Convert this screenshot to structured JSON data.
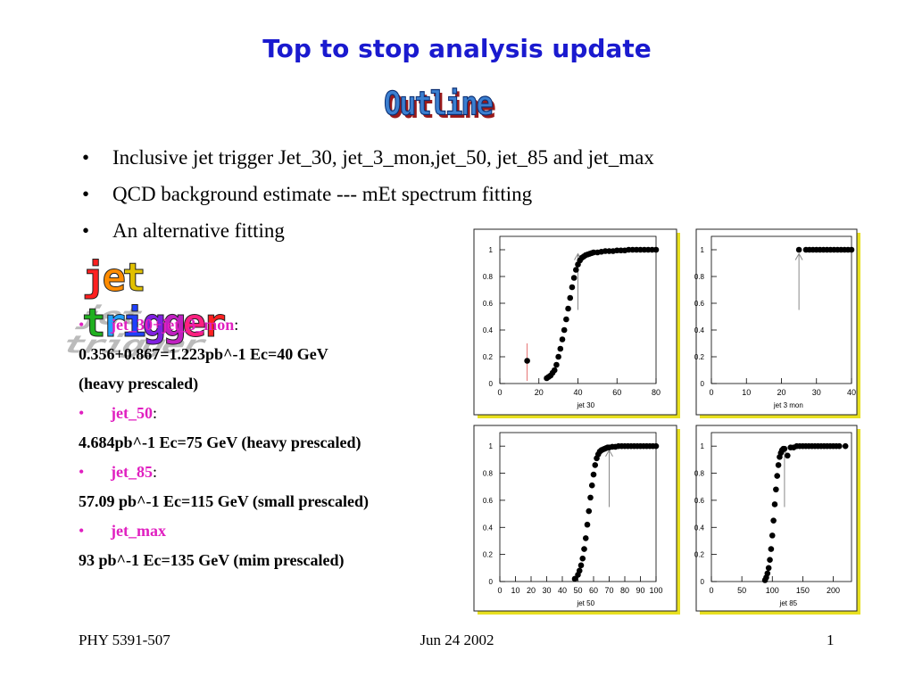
{
  "slide": {
    "title": "Top to stop analysis update",
    "outline_art": "Outline",
    "bullets": [
      "Inclusive jet trigger Jet_30, jet_3_mon,jet_50, jet_85 and jet_max",
      "QCD background estimate --- mEt spectrum fitting",
      "An alternative fitting"
    ],
    "bullet_symbol": "•",
    "jet_trigger_art": [
      "j",
      "e",
      "t",
      " ",
      "t",
      "r",
      "i",
      "g",
      "g",
      "e",
      "r"
    ],
    "jet_trigger_colors": [
      "#ff2020",
      "#ff8c00",
      "#e0c000",
      "#ffffff",
      "#20b020",
      "#20a0ff",
      "#2040ff",
      "#8020e0",
      "#c020c0",
      "#ff2080",
      "#ff2020"
    ],
    "triggers": [
      {
        "name": "jet_30+jet_3_mon",
        "suffix": ":",
        "detail": "0.356+0.867=1.223pb^-1 Ec=40 GeV",
        "extra": "(heavy prescaled)"
      },
      {
        "name": "jet_50",
        "suffix": ":",
        "detail": "4.684pb^-1  Ec=75 GeV (heavy prescaled)"
      },
      {
        "name": "jet_85",
        "suffix": ":",
        "detail": "57.09 pb^-1 Ec=115 GeV (small prescaled)"
      },
      {
        "name": "jet_max",
        "suffix": "",
        "detail": "93 pb^-1 Ec=135 GeV (mim prescaled)"
      }
    ],
    "footer": {
      "left": "PHY 5391-507",
      "center": "Jun 24 2002",
      "right": "1"
    }
  },
  "colors": {
    "title": "#1a1acf",
    "trigger_name": "#e020c0",
    "plot_frame": "#e8e020"
  },
  "chart_data": [
    {
      "type": "scatter",
      "xlabel": "jet 30",
      "xlim": [
        0,
        80
      ],
      "ylim": [
        0,
        1.1
      ],
      "xticks": [
        0,
        20,
        40,
        60,
        80
      ],
      "yticks": [
        0,
        0.2,
        0.4,
        0.6,
        0.8,
        1
      ],
      "x": [
        14,
        24,
        25,
        26,
        27,
        28,
        29,
        30,
        31,
        32,
        33,
        34,
        35,
        36,
        37,
        38,
        39,
        40,
        41,
        42,
        43,
        44,
        45,
        46,
        47,
        48,
        50,
        52,
        54,
        56,
        58,
        60,
        62,
        64,
        66,
        68,
        70,
        72,
        74,
        76,
        78,
        80
      ],
      "y": [
        0.17,
        0.04,
        0.05,
        0.06,
        0.08,
        0.1,
        0.14,
        0.2,
        0.26,
        0.33,
        0.4,
        0.48,
        0.56,
        0.64,
        0.72,
        0.79,
        0.85,
        0.89,
        0.92,
        0.94,
        0.95,
        0.96,
        0.965,
        0.97,
        0.975,
        0.98,
        0.98,
        0.985,
        0.99,
        0.99,
        0.99,
        0.995,
        0.995,
        0.995,
        1,
        1,
        1,
        1,
        1,
        1,
        1,
        1
      ],
      "threshold": 40,
      "marker": 14
    },
    {
      "type": "scatter",
      "xlabel": "jet 3 mon",
      "xlim": [
        0,
        40
      ],
      "ylim": [
        0,
        1.1
      ],
      "xticks": [
        0,
        10,
        20,
        30,
        40
      ],
      "yticks": [
        0,
        0.2,
        0.4,
        0.6,
        0.8,
        1
      ],
      "x": [
        25,
        27,
        28,
        29,
        30,
        31,
        32,
        33,
        34,
        35,
        36,
        37,
        38,
        39,
        40
      ],
      "y": [
        1,
        1,
        1,
        1,
        1,
        1,
        1,
        1,
        1,
        1,
        1,
        1,
        1,
        1,
        1
      ],
      "threshold": 25
    },
    {
      "type": "scatter",
      "xlabel": "jet 50",
      "xlim": [
        0,
        100
      ],
      "ylim": [
        0,
        1.1
      ],
      "xticks": [
        0,
        10,
        20,
        30,
        40,
        50,
        60,
        70,
        80,
        90,
        100
      ],
      "yticks": [
        0,
        0.2,
        0.4,
        0.6,
        0.8,
        1
      ],
      "x": [
        48,
        50,
        51,
        52,
        53,
        54,
        55,
        56,
        57,
        58,
        59,
        60,
        61,
        62,
        63,
        64,
        65,
        66,
        67,
        68,
        69,
        70,
        72,
        74,
        76,
        78,
        80,
        82,
        84,
        86,
        88,
        90,
        92,
        94,
        96,
        98,
        100
      ],
      "y": [
        0.02,
        0.05,
        0.08,
        0.12,
        0.17,
        0.24,
        0.32,
        0.42,
        0.52,
        0.62,
        0.71,
        0.79,
        0.86,
        0.91,
        0.94,
        0.96,
        0.97,
        0.975,
        0.98,
        0.985,
        0.99,
        0.99,
        0.995,
        0.995,
        1,
        1,
        1,
        1,
        1,
        1,
        1,
        1,
        1,
        1,
        1,
        1,
        1
      ],
      "threshold": 70
    },
    {
      "type": "scatter",
      "xlabel": "jet 85",
      "xlim": [
        0,
        230
      ],
      "ylim": [
        0,
        1.1
      ],
      "xticks": [
        0,
        50,
        100,
        150,
        200
      ],
      "yticks": [
        0,
        0.2,
        0.4,
        0.6,
        0.8,
        1
      ],
      "x": [
        88,
        90,
        92,
        94,
        96,
        98,
        100,
        102,
        104,
        106,
        108,
        110,
        112,
        114,
        116,
        118,
        120,
        125,
        130,
        135,
        140,
        145,
        150,
        155,
        160,
        165,
        170,
        175,
        180,
        185,
        190,
        195,
        200,
        205,
        210,
        220
      ],
      "y": [
        0.01,
        0.03,
        0.06,
        0.1,
        0.16,
        0.24,
        0.34,
        0.45,
        0.57,
        0.68,
        0.78,
        0.86,
        0.92,
        0.95,
        0.97,
        0.98,
        0.98,
        0.93,
        0.99,
        0.99,
        1,
        1,
        1,
        1,
        1,
        1,
        1,
        1,
        1,
        1,
        1,
        1,
        1,
        1,
        1,
        1
      ],
      "threshold": 120
    }
  ]
}
